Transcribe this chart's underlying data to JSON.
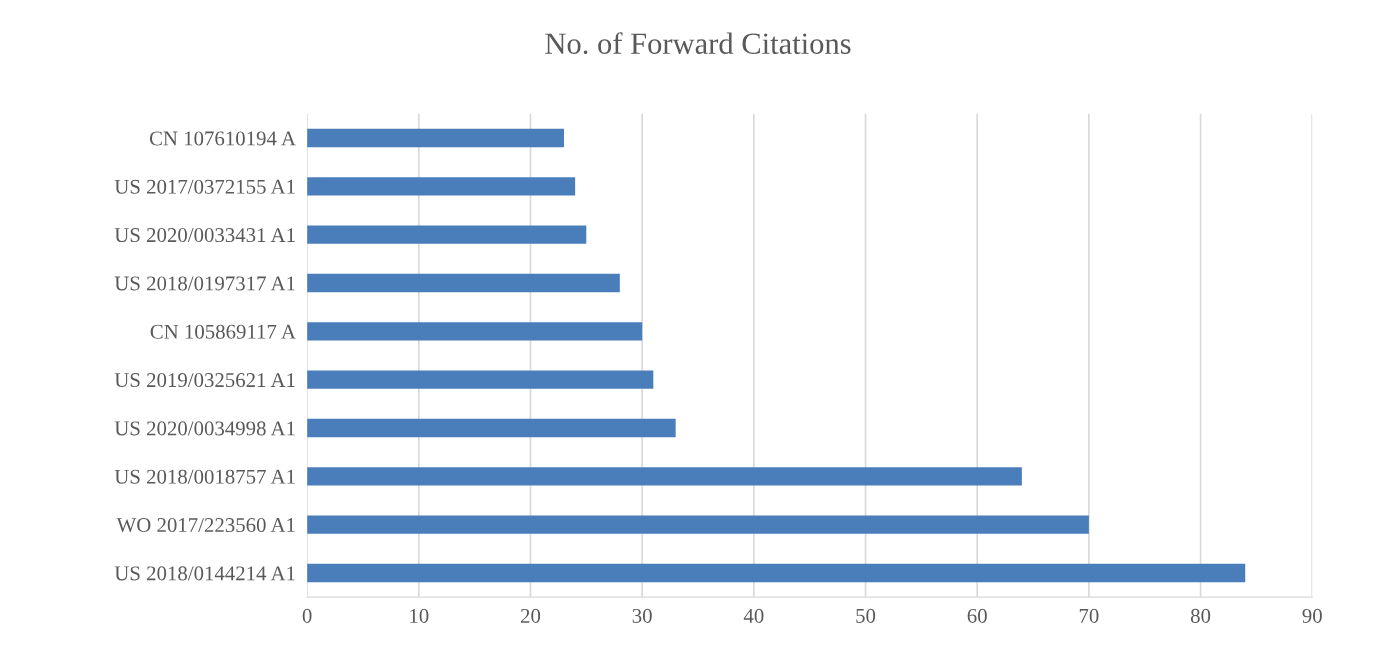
{
  "chart_data": {
    "type": "bar",
    "orientation": "horizontal",
    "title": "No. of Forward Citations",
    "categories": [
      "CN 107610194 A",
      "US 2017/0372155 A1",
      "US 2020/0033431 A1",
      "US 2018/0197317 A1",
      "CN 105869117 A",
      "US 2019/0325621 A1",
      "US 2020/0034998 A1",
      "US 2018/0018757 A1",
      "WO 2017/223560 A1",
      "US 2018/0144214 A1"
    ],
    "values": [
      23,
      24,
      25,
      28,
      30,
      31,
      33,
      64,
      70,
      84
    ],
    "color": "#4a7ebb",
    "xlim": [
      0,
      90
    ],
    "xticks": [
      0,
      10,
      20,
      30,
      40,
      50,
      60,
      70,
      80,
      90
    ],
    "grid": "x",
    "legend": false
  }
}
